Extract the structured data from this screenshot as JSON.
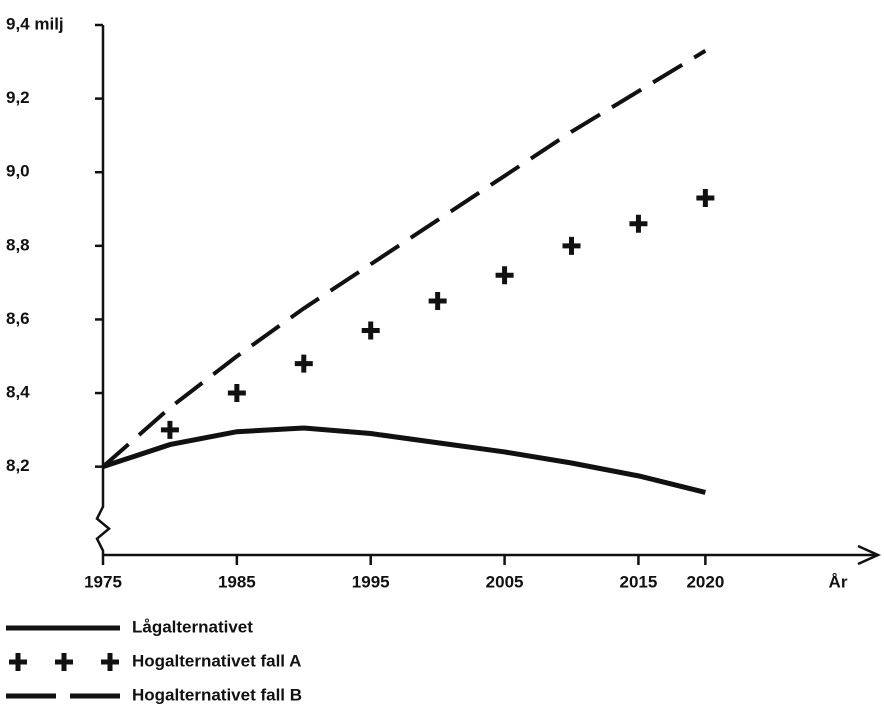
{
  "chart_data": {
    "type": "line",
    "x": [
      1975,
      1980,
      1985,
      1990,
      1995,
      2000,
      2005,
      2010,
      2015,
      2020
    ],
    "xlim": [
      1975,
      2032
    ],
    "xticks": [
      1975,
      1985,
      1995,
      2005,
      2015,
      2020
    ],
    "x_label": "År",
    "ylim": [
      7.96,
      9.4
    ],
    "yticks": [
      {
        "value": 8.2,
        "label": "8,2"
      },
      {
        "value": 8.4,
        "label": "8,4"
      },
      {
        "value": 8.6,
        "label": "8,6"
      },
      {
        "value": 8.8,
        "label": "8,8"
      },
      {
        "value": 9.0,
        "label": "9,0"
      },
      {
        "value": 9.2,
        "label": "9,2"
      },
      {
        "value": 9.4,
        "label": "9,4 milj"
      }
    ],
    "series": [
      {
        "name": "Lågalternativet",
        "color": "#111111",
        "style": "solid",
        "values": [
          8.2,
          8.26,
          8.295,
          8.305,
          8.29,
          8.265,
          8.24,
          8.21,
          8.175,
          8.13
        ]
      },
      {
        "name": "Hogalternativet fall A",
        "color": "#111111",
        "style": "plus",
        "values": [
          8.2,
          8.3,
          8.4,
          8.48,
          8.57,
          8.65,
          8.72,
          8.8,
          8.86,
          8.93
        ]
      },
      {
        "name": "Hogalternativet fall B",
        "color": "#111111",
        "style": "dashed",
        "values": [
          8.2,
          8.36,
          8.5,
          8.63,
          8.75,
          8.87,
          8.99,
          9.11,
          9.22,
          9.33
        ]
      }
    ]
  }
}
